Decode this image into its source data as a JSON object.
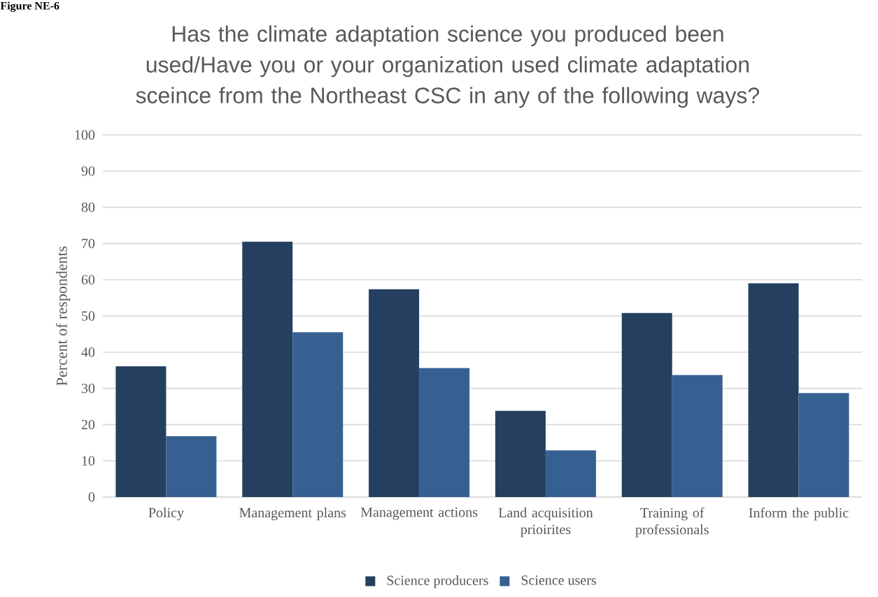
{
  "chart_data": {
    "type": "bar",
    "title": "Has the climate adaptation science you produced been used/Have you or your organization used climate adaptation sceince from the Northeast CSC in any of the following ways?",
    "ylabel": "Percent of respondents",
    "annotations": [
      "Figure NE-6"
    ],
    "categories": [
      "Policy",
      "Management plans",
      "Management actions",
      "Land acquisition prioirites",
      "Training of professionals",
      "Inform the public"
    ],
    "series": [
      {
        "name": "Science producers",
        "color": "#253f60",
        "values": [
          36.1,
          70.5,
          57.4,
          23.8,
          50.8,
          59.0
        ]
      },
      {
        "name": "Science users",
        "color": "#366092",
        "values": [
          16.8,
          45.5,
          35.6,
          12.9,
          33.7,
          28.7
        ]
      }
    ],
    "ylim": [
      0,
      100
    ],
    "yticks": [
      0,
      10,
      20,
      30,
      40,
      50,
      60,
      70,
      80,
      90,
      100
    ],
    "grid": "y",
    "legend": "bottom"
  }
}
